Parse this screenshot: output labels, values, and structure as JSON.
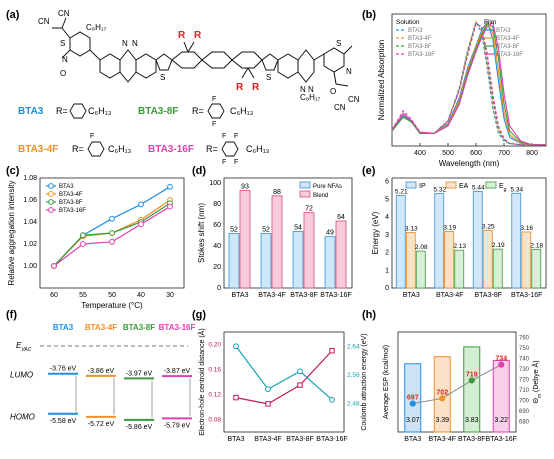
{
  "panel_labels": {
    "a": "(a)",
    "b": "(b)",
    "c": "(c)",
    "d": "(d)",
    "e": "(e)",
    "f": "(f)",
    "g": "(g)",
    "h": "(h)"
  },
  "colors": {
    "BTA3": "#1f8fe0",
    "BTA3-4F": "#f0902a",
    "BTA3-8F": "#3a9a3a",
    "BTA3-16F": "#e040b0"
  },
  "panel_a": {
    "names": [
      "BTA3",
      "BTA3-8F",
      "BTA3-4F",
      "BTA3-16F"
    ],
    "r_prefix": "R=",
    "c6h13": "C₆H₁₃",
    "c8h17": "C₈H₁₇",
    "r_label": "R",
    "cn": "CN",
    "n": "N",
    "o": "O",
    "s": "S",
    "f": "F"
  },
  "chart_data": [
    {
      "id": "b",
      "type": "line",
      "xlabel": "Wavelength (nm)",
      "ylabel": "Normalized Absorption",
      "xlim": [
        300,
        850
      ],
      "ylim": [
        0,
        1.05
      ],
      "xticks": [
        400,
        500,
        600,
        700,
        800
      ],
      "legend_solution_title": "Solution",
      "legend_film_title": "Film",
      "legend_solution": [
        "BTA3",
        "BTA3-4F",
        "BTA3-8F",
        "BTA3-16F"
      ],
      "legend_film": [
        "BTA3",
        "BTA3-4F",
        "BTA3-8F",
        "BTA3-16F"
      ],
      "series": [
        {
          "name": "BTA3",
          "mode": "Solution",
          "x": [
            300,
            340,
            370,
            400,
            450,
            500,
            540,
            570,
            600,
            620,
            640,
            660,
            680,
            700,
            720,
            760,
            800,
            850
          ],
          "y": [
            0.12,
            0.26,
            0.2,
            0.1,
            0.1,
            0.2,
            0.46,
            0.76,
            0.99,
            0.9,
            0.62,
            0.3,
            0.1,
            0.04,
            0.02,
            0.01,
            0.01,
            0.01
          ]
        },
        {
          "name": "BTA3-4F",
          "mode": "Solution",
          "x": [
            300,
            340,
            370,
            400,
            450,
            500,
            540,
            570,
            600,
            620,
            640,
            660,
            680,
            700,
            720,
            760,
            800,
            850
          ],
          "y": [
            0.12,
            0.25,
            0.2,
            0.1,
            0.1,
            0.2,
            0.45,
            0.75,
            0.99,
            0.92,
            0.66,
            0.34,
            0.12,
            0.05,
            0.02,
            0.01,
            0.01,
            0.01
          ]
        },
        {
          "name": "BTA3-8F",
          "mode": "Solution",
          "x": [
            300,
            340,
            370,
            400,
            450,
            500,
            540,
            570,
            600,
            620,
            640,
            660,
            680,
            700,
            720,
            760,
            800,
            850
          ],
          "y": [
            0.12,
            0.24,
            0.19,
            0.1,
            0.1,
            0.2,
            0.44,
            0.74,
            0.98,
            0.94,
            0.7,
            0.38,
            0.14,
            0.05,
            0.02,
            0.01,
            0.01,
            0.01
          ]
        },
        {
          "name": "BTA3-16F",
          "mode": "Solution",
          "x": [
            300,
            340,
            370,
            400,
            450,
            500,
            540,
            570,
            600,
            620,
            640,
            660,
            680,
            700,
            720,
            760,
            800,
            850
          ],
          "y": [
            0.13,
            0.28,
            0.21,
            0.11,
            0.1,
            0.2,
            0.44,
            0.72,
            0.97,
            0.95,
            0.74,
            0.42,
            0.16,
            0.06,
            0.02,
            0.01,
            0.01,
            0.01
          ]
        },
        {
          "name": "BTA3",
          "mode": "Film",
          "x": [
            300,
            340,
            370,
            400,
            450,
            500,
            540,
            570,
            600,
            620,
            640,
            660,
            680,
            700,
            720,
            760,
            800,
            850
          ],
          "y": [
            0.12,
            0.24,
            0.2,
            0.1,
            0.1,
            0.18,
            0.38,
            0.62,
            0.8,
            0.92,
            0.99,
            0.85,
            0.52,
            0.22,
            0.07,
            0.02,
            0.01,
            0.01
          ]
        },
        {
          "name": "BTA3-4F",
          "mode": "Film",
          "x": [
            300,
            340,
            370,
            400,
            450,
            500,
            540,
            570,
            600,
            620,
            640,
            660,
            680,
            700,
            720,
            760,
            800,
            850
          ],
          "y": [
            0.12,
            0.23,
            0.19,
            0.1,
            0.1,
            0.17,
            0.36,
            0.6,
            0.79,
            0.9,
            0.98,
            0.9,
            0.6,
            0.27,
            0.09,
            0.02,
            0.01,
            0.01
          ]
        },
        {
          "name": "BTA3-8F",
          "mode": "Film",
          "x": [
            300,
            340,
            370,
            400,
            450,
            500,
            540,
            570,
            600,
            620,
            640,
            660,
            680,
            700,
            720,
            760,
            800,
            850
          ],
          "y": [
            0.12,
            0.23,
            0.19,
            0.1,
            0.1,
            0.16,
            0.34,
            0.58,
            0.77,
            0.88,
            0.97,
            0.95,
            0.7,
            0.34,
            0.12,
            0.03,
            0.01,
            0.01
          ]
        },
        {
          "name": "BTA3-16F",
          "mode": "Film",
          "x": [
            300,
            340,
            370,
            400,
            450,
            500,
            540,
            570,
            600,
            620,
            640,
            660,
            680,
            700,
            720,
            760,
            800,
            850
          ],
          "y": [
            0.13,
            0.26,
            0.2,
            0.11,
            0.1,
            0.16,
            0.33,
            0.56,
            0.75,
            0.86,
            0.95,
            0.98,
            0.78,
            0.42,
            0.16,
            0.04,
            0.01,
            0.01
          ]
        }
      ]
    },
    {
      "id": "c",
      "type": "line",
      "xlabel": "Temperature (°C)",
      "ylabel": "Relative aggregation intensity",
      "categories": [
        "60",
        "55",
        "50",
        "40",
        "30"
      ],
      "ylim": [
        0.98,
        1.08
      ],
      "yticks": [
        "1.00",
        "1.02",
        "1.04",
        "1.06",
        "1.08"
      ],
      "series": [
        {
          "name": "BTA3",
          "values": [
            1.0,
            1.028,
            1.043,
            1.056,
            1.072
          ]
        },
        {
          "name": "BTA3-4F",
          "values": [
            1.0,
            1.027,
            1.03,
            1.042,
            1.06
          ]
        },
        {
          "name": "BTA3-8F",
          "values": [
            1.0,
            1.028,
            1.03,
            1.04,
            1.057
          ]
        },
        {
          "name": "BTA3-16F",
          "values": [
            1.0,
            1.02,
            1.022,
            1.038,
            1.054
          ]
        }
      ]
    },
    {
      "id": "d",
      "type": "bar",
      "ylabel": "Stokes shift (nm)",
      "categories": [
        "BTA3",
        "BTA3-4F",
        "BTA3-8F",
        "BTA3-16F"
      ],
      "ylim": [
        0,
        105
      ],
      "yticks": [
        0,
        20,
        40,
        60,
        80,
        100
      ],
      "series": [
        {
          "name": "Pure NFAs",
          "values": [
            52,
            52,
            54,
            49
          ],
          "labels": [
            "52",
            "52",
            "54",
            "49"
          ]
        },
        {
          "name": "Blend",
          "values": [
            93,
            88,
            72,
            64
          ],
          "labels": [
            "93",
            "88",
            "72",
            "64"
          ]
        }
      ]
    },
    {
      "id": "e",
      "type": "bar",
      "ylabel": "Energy (eV)",
      "categories": [
        "BTA3",
        "BTA3-4F",
        "BTA3-8F",
        "BTA3-16F"
      ],
      "ylim": [
        0,
        6.2
      ],
      "yticks": [
        0,
        1,
        2,
        3,
        4,
        5,
        6
      ],
      "series": [
        {
          "name": "IP",
          "values": [
            5.21,
            5.32,
            5.44,
            5.34
          ],
          "labels": [
            "5.21",
            "5.32",
            "5.44",
            "5.34"
          ]
        },
        {
          "name": "EA",
          "values": [
            3.13,
            3.19,
            3.25,
            3.16
          ],
          "labels": [
            "3.13",
            "3.19",
            "3.25",
            "3.16"
          ]
        },
        {
          "name": "Eg",
          "values": [
            2.08,
            2.13,
            2.19,
            2.18
          ],
          "labels": [
            "2.08",
            "2.13",
            "2.19",
            "2.18"
          ]
        }
      ],
      "legend": [
        "IP",
        "EA",
        "E"
      ],
      "legend_sub": "g"
    },
    {
      "id": "f",
      "type": "diagram",
      "evac": "E",
      "evac_sub": "VAC",
      "lumo_label": "LUMO",
      "homo_label": "HOMO",
      "columns": [
        {
          "name": "BTA3",
          "lumo": -3.76,
          "homo": -5.58,
          "lumo_label": "-3.76 eV",
          "homo_label": "-5.58 eV"
        },
        {
          "name": "BTA3-4F",
          "lumo": -3.86,
          "homo": -5.72,
          "lumo_label": "-3.86 eV",
          "homo_label": "-5.72 eV"
        },
        {
          "name": "BTA3-8F",
          "lumo": -3.97,
          "homo": -5.86,
          "lumo_label": "-3.97 eV",
          "homo_label": "-5.86 eV"
        },
        {
          "name": "BTA3-16F",
          "lumo": -3.87,
          "homo": -5.79,
          "lumo_label": "-3.87 eV",
          "homo_label": "-5.79 eV"
        }
      ]
    },
    {
      "id": "g",
      "type": "line",
      "categories": [
        "BTA3",
        "BTA3-4F",
        "BTA3-8F",
        "BTA3-16F"
      ],
      "left_ylabel": "Electron-hole centroid distance (Å)",
      "right_ylabel": "Coulomb attraction energy (eV)",
      "left_ylim": [
        0.06,
        0.22
      ],
      "left_yticks": [
        "0.08",
        "0.12",
        "0.16",
        "0.20"
      ],
      "right_ylim": [
        2.4,
        2.68
      ],
      "right_yticks": [
        "2.48",
        "2.56",
        "2.64"
      ],
      "series": [
        {
          "name": "Electron-hole centroid distance",
          "axis": "left",
          "values": [
            0.115,
            0.105,
            0.135,
            0.19
          ]
        },
        {
          "name": "Coulomb attraction energy",
          "axis": "right",
          "values": [
            2.64,
            2.52,
            2.57,
            2.49
          ]
        }
      ]
    },
    {
      "id": "h",
      "type": "bar",
      "categories": [
        "BTA3",
        "BTA3-4F",
        "BTA3-8F",
        "BTA3-16F"
      ],
      "left_ylabel": "Average ESP (kcal/mol)",
      "right_ylabel": "Θ",
      "right_ylabel_sub": "m",
      "right_ylabel_unit": " (Debye Å)",
      "left_ylim": [
        0,
        4.5
      ],
      "right_ylim": [
        670,
        765
      ],
      "right_yticks": [
        "680",
        "690",
        "700",
        "710",
        "720",
        "730",
        "740",
        "750",
        "760"
      ],
      "series": [
        {
          "name": "Average ESP",
          "axis": "left",
          "values": [
            3.07,
            3.39,
            3.83,
            3.22
          ],
          "labels": [
            "3.07",
            "3.39",
            "3.83",
            "3.22"
          ]
        },
        {
          "name": "Θm",
          "axis": "right",
          "values": [
            697,
            702,
            719,
            734
          ],
          "labels": [
            "697",
            "702",
            "719",
            "734"
          ]
        }
      ]
    }
  ]
}
